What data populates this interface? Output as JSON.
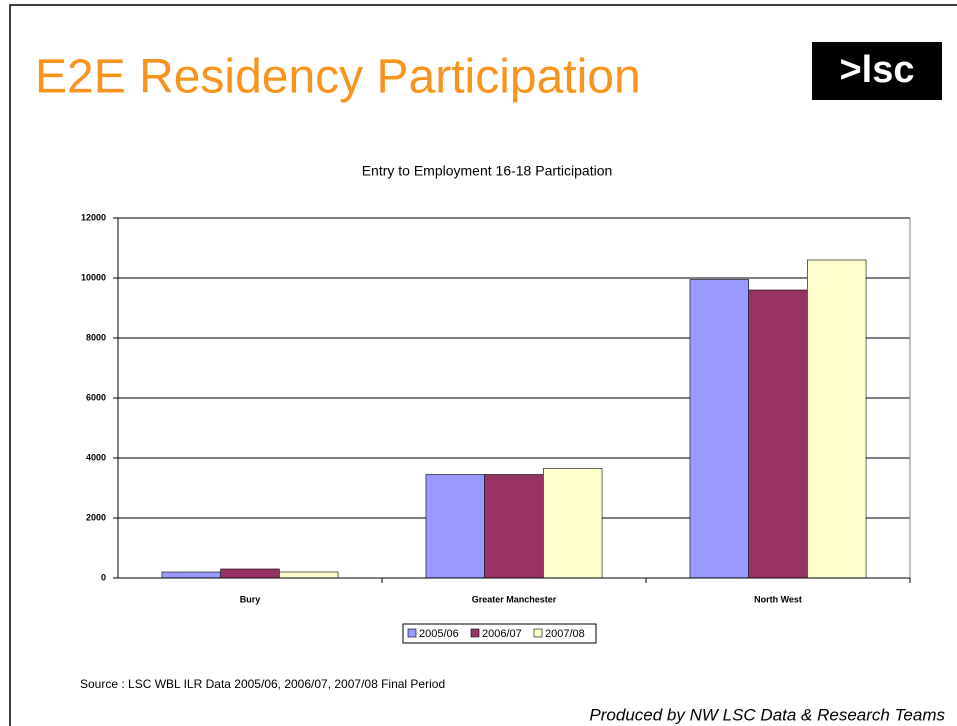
{
  "slide_title": "E2E Residency Participation",
  "logo": ">lsc",
  "source": "Source : LSC WBL ILR Data 2005/06, 2006/07, 2007/08 Final Period",
  "footer": "Produced by NW LSC Data & Research Teams",
  "chart_data": {
    "type": "bar",
    "title": "Entry to Employment 16-18 Participation",
    "categories": [
      "Bury",
      "Greater Manchester",
      "North West"
    ],
    "series": [
      {
        "name": "2005/06",
        "color": "#9999ff",
        "values": [
          200,
          3450,
          9950
        ]
      },
      {
        "name": "2006/07",
        "color": "#993366",
        "values": [
          300,
          3450,
          9600
        ]
      },
      {
        "name": "2007/08",
        "color": "#ffffcc",
        "values": [
          200,
          3650,
          10600
        ]
      }
    ],
    "ylim": [
      0,
      12000
    ],
    "yticks": [
      0,
      2000,
      4000,
      6000,
      8000,
      10000,
      12000
    ],
    "grid": true,
    "legend": "bottom"
  }
}
